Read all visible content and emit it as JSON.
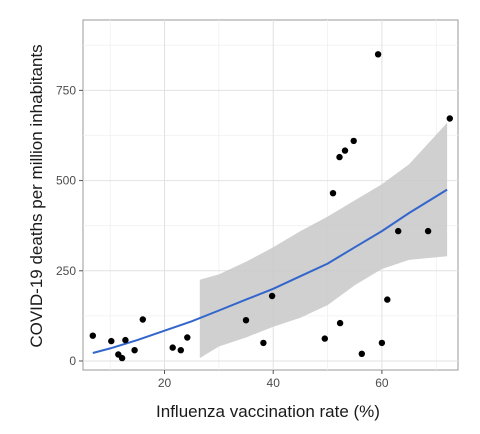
{
  "chart_data": {
    "type": "scatter",
    "xlabel": "Influenza vaccination rate (%)",
    "ylabel": "COVID-19 deaths per million inhabitants",
    "xlim": [
      5,
      74
    ],
    "ylim": [
      -25,
      945
    ],
    "x_ticks": [
      20,
      40,
      60
    ],
    "x_minor_ticks": [
      10,
      30,
      50,
      70
    ],
    "y_ticks": [
      0,
      250,
      500,
      750
    ],
    "y_minor_ticks": [
      125,
      375,
      625,
      875
    ],
    "x_tick_labels": [
      "20",
      "40",
      "60"
    ],
    "y_tick_labels": [
      "0",
      "250",
      "500",
      "750"
    ],
    "grid": true,
    "theme": "light",
    "point_color": "#000000",
    "fit_line_color": "#3366cc",
    "ribbon_color": "#c8c8c8",
    "points": [
      {
        "x": 6.8,
        "y": 70
      },
      {
        "x": 10.2,
        "y": 55
      },
      {
        "x": 11.5,
        "y": 18
      },
      {
        "x": 12.2,
        "y": 8
      },
      {
        "x": 12.8,
        "y": 58
      },
      {
        "x": 14.5,
        "y": 30
      },
      {
        "x": 16.0,
        "y": 115
      },
      {
        "x": 21.5,
        "y": 37
      },
      {
        "x": 23.0,
        "y": 30
      },
      {
        "x": 24.2,
        "y": 65
      },
      {
        "x": 35.0,
        "y": 113
      },
      {
        "x": 38.2,
        "y": 50
      },
      {
        "x": 39.8,
        "y": 180
      },
      {
        "x": 49.5,
        "y": 62
      },
      {
        "x": 51.0,
        "y": 465
      },
      {
        "x": 52.2,
        "y": 565
      },
      {
        "x": 52.3,
        "y": 105
      },
      {
        "x": 53.2,
        "y": 583
      },
      {
        "x": 54.8,
        "y": 610
      },
      {
        "x": 56.3,
        "y": 20
      },
      {
        "x": 59.3,
        "y": 850
      },
      {
        "x": 60.0,
        "y": 50
      },
      {
        "x": 61.0,
        "y": 170
      },
      {
        "x": 63.0,
        "y": 360
      },
      {
        "x": 68.5,
        "y": 360
      },
      {
        "x": 72.5,
        "y": 672
      }
    ],
    "fit": {
      "x": [
        6.8,
        10,
        15,
        20,
        25,
        30,
        35,
        40,
        45,
        50,
        55,
        60,
        65,
        72
      ],
      "y": [
        22,
        35,
        58,
        84,
        110,
        140,
        170,
        200,
        235,
        270,
        315,
        360,
        410,
        475
      ]
    },
    "ribbon": {
      "x": [
        26.5,
        30,
        35,
        40,
        45,
        50,
        55,
        60,
        65,
        72
      ],
      "lower": [
        8,
        40,
        65,
        95,
        120,
        155,
        210,
        255,
        280,
        290
      ],
      "upper": [
        225,
        240,
        275,
        315,
        360,
        400,
        445,
        490,
        545,
        660
      ]
    }
  }
}
